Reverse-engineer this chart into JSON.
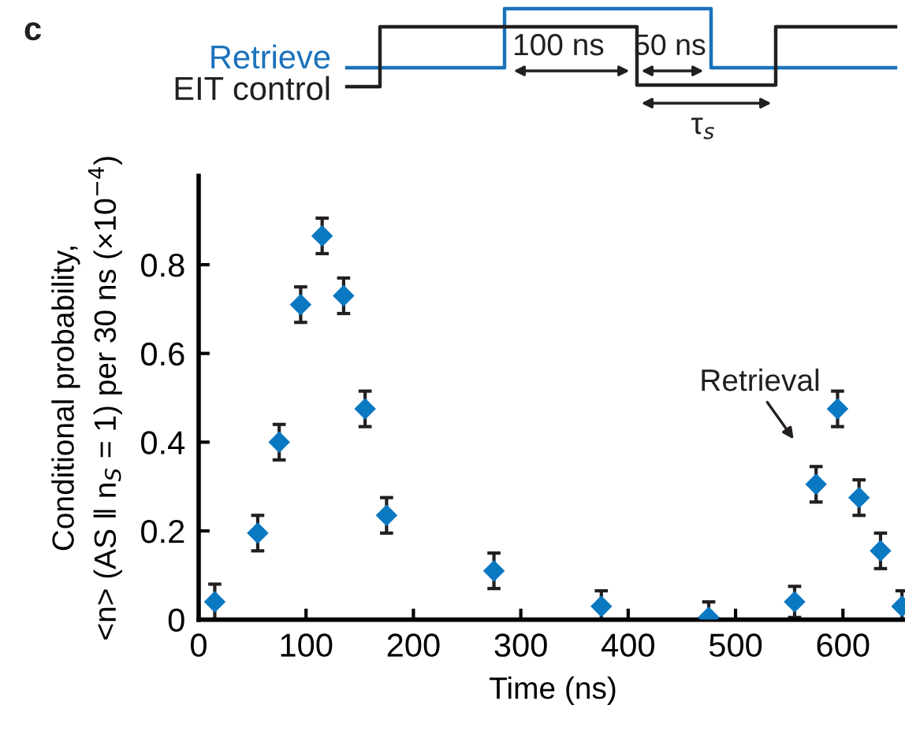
{
  "chart_data": {
    "type": "scatter",
    "xlabel": "Time (ns)",
    "ylabel": "Conditional probability,\n<n> (AS ‖ n$_{S}$ = 1) per 30 ns (×10$^{−4}$)",
    "x": [
      15,
      55,
      75,
      95,
      115,
      135,
      155,
      175,
      275,
      375,
      475,
      555,
      575,
      595,
      615,
      635,
      655
    ],
    "series": [
      {
        "color": "#0b78c2",
        "values": [
          0.04,
          0.195,
          0.4,
          0.71,
          0.865,
          0.73,
          0.475,
          0.235,
          0.11,
          0.03,
          0.005,
          0.04,
          0.305,
          0.475,
          0.275,
          0.155,
          0.03
        ],
        "errors": [
          0.04,
          0.04,
          0.04,
          0.04,
          0.04,
          0.04,
          0.04,
          0.04,
          0.04,
          0.035,
          0.035,
          0.035,
          0.04,
          0.04,
          0.04,
          0.04,
          0.035
        ]
      }
    ],
    "marker": "diamond",
    "xlim": [
      0,
      660
    ],
    "xticks": [
      0,
      100,
      200,
      300,
      400,
      500,
      600
    ],
    "ylim": [
      0,
      1.0
    ],
    "yticks": [
      0,
      0.2,
      0.4,
      0.6,
      0.8
    ],
    "grid": false,
    "legend": false,
    "annotations": [
      "Retrieval",
      "c",
      "Retrieve",
      "EIT control",
      "100 ns",
      "50 ns",
      "τ$_{s}$"
    ]
  }
}
